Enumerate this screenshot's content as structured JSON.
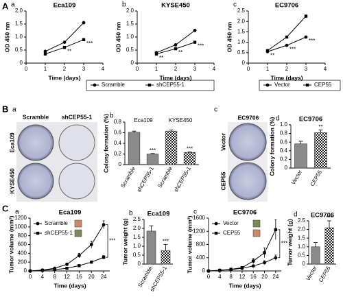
{
  "figure": {
    "panels": [
      "A",
      "B",
      "C"
    ],
    "plates_left": {
      "letter": "a",
      "columns": [
        "Scramble",
        "shCEP55-1"
      ],
      "rows": [
        "Eca109",
        "KYSE450"
      ]
    },
    "plates_right": {
      "letter": "c",
      "title": "EC9706",
      "rows": [
        "Vector",
        "CEP55"
      ]
    }
  },
  "chart_data": [
    {
      "type": "line",
      "letter": "a",
      "title": "Eca109",
      "x_label": "Time (days)",
      "y_label": "OD 450 nm",
      "x": [
        1,
        2,
        3
      ],
      "xlim": [
        0,
        4
      ],
      "xticks": [
        0,
        1,
        2,
        3,
        4
      ],
      "ylim": [
        0,
        2
      ],
      "yticks": [
        0,
        0.5,
        {
          "value": 1,
          "label": "1.0"
        },
        1.5,
        {
          "value": 2,
          "label": "2.0"
        }
      ],
      "legend": "below",
      "series": [
        {
          "name": "Scramble",
          "color": "#000000",
          "marker": "circle",
          "values": [
            0.45,
            0.8,
            1.55
          ],
          "errors": [
            0.03,
            0.04,
            0.05
          ]
        },
        {
          "name": "shCEP55-1",
          "color": "#000000",
          "marker": "square",
          "values": [
            0.35,
            0.6,
            0.9
          ],
          "errors": [
            0.03,
            0.03,
            0.04
          ]
        }
      ],
      "significance": [
        null,
        "**",
        "***"
      ]
    },
    {
      "type": "line",
      "letter": "b",
      "title": "KYSE450",
      "x_label": "Time (days)",
      "y_label": "OD 450 nm",
      "x": [
        1,
        2,
        3
      ],
      "xlim": [
        0,
        4
      ],
      "xticks": [
        0,
        1,
        2,
        3,
        4
      ],
      "ylim": [
        0,
        2
      ],
      "yticks": [
        0,
        0.5,
        {
          "value": 1,
          "label": "1.0"
        },
        1.5,
        {
          "value": 2,
          "label": "2.0"
        }
      ],
      "legend": "none",
      "series": [
        {
          "color": "#000000",
          "marker": "circle",
          "values": [
            0.4,
            0.7,
            1.25
          ],
          "errors": [
            0.03,
            0.04,
            0.05
          ]
        },
        {
          "color": "#000000",
          "marker": "square",
          "values": [
            0.35,
            0.55,
            0.8
          ],
          "errors": [
            0.03,
            0.03,
            0.04
          ]
        }
      ],
      "significance": [
        "**",
        "**",
        "***"
      ]
    },
    {
      "type": "line",
      "letter": "c",
      "title": "EC9706",
      "x_label": "Time (days)",
      "y_label": "OD 450 nm",
      "x": [
        1,
        2,
        3
      ],
      "xlim": [
        0,
        4
      ],
      "xticks": [
        0,
        1,
        2,
        3,
        4
      ],
      "ylim": [
        0,
        2.5
      ],
      "yticks": [
        0,
        0.5,
        {
          "value": 1,
          "label": "1.0"
        },
        1.5,
        {
          "value": 2,
          "label": "2.0"
        },
        2.5
      ],
      "legend": "below",
      "series": [
        {
          "name": "Vector",
          "color": "#000000",
          "marker": "circle",
          "values": [
            0.55,
            0.85,
            1.25
          ],
          "errors": [
            0.03,
            0.04,
            0.05
          ]
        },
        {
          "name": "CEP55",
          "color": "#000000",
          "marker": "square",
          "values": [
            0.6,
            1.25,
            2.25
          ],
          "errors": [
            0.04,
            0.05,
            0.06
          ]
        }
      ],
      "significance": [
        "**",
        "***",
        "***"
      ]
    },
    {
      "type": "bar",
      "letter": "b",
      "y_label": "Colony formation (%)",
      "categories": [
        "Scramble",
        "shCEP55-1",
        "Scramble",
        "shCEP55-1"
      ],
      "group_labels": [
        "Eca109",
        "KYSE450"
      ],
      "values": [
        0.61,
        0.2,
        0.63,
        0.23
      ],
      "errors": [
        0.02,
        0.01,
        0.02,
        0.01
      ],
      "colors": [
        "#8a8a8a",
        "#8a8a8a",
        "#8a8a8a",
        "#8a8a8a"
      ],
      "patterns": [
        "solid",
        "solid",
        "checker",
        "checker"
      ],
      "ylim": [
        0,
        0.8
      ],
      "yticks": [
        0,
        0.2,
        0.4,
        0.6,
        0.8
      ],
      "significance": [
        null,
        "***",
        null,
        "***"
      ]
    },
    {
      "type": "bar",
      "letter": "d",
      "title": "EC9706",
      "y_label": "Colony formation (%)",
      "categories": [
        "Vector",
        "CEP55"
      ],
      "values": [
        0.56,
        0.82
      ],
      "errors": [
        0.06,
        0.06
      ],
      "colors": [
        "#8a8a8a",
        "#8a8a8a"
      ],
      "patterns": [
        "solid",
        "checker"
      ],
      "ylim": [
        0,
        1
      ],
      "yticks": [
        0,
        0.2,
        0.4,
        0.6,
        0.8,
        {
          "value": 1,
          "label": "1.0"
        }
      ],
      "significance": [
        null,
        "**"
      ]
    },
    {
      "type": "line",
      "letter": "a",
      "title": "Eca109",
      "x_label": "Time (days)",
      "y_label": "Tumor volume (mm³)",
      "x": [
        0,
        4,
        8,
        12,
        16,
        20,
        24
      ],
      "xlim": [
        0,
        26
      ],
      "xticks": [
        0,
        4,
        8,
        12,
        16,
        20,
        24
      ],
      "ylim": [
        0,
        1200
      ],
      "yticks": [
        0,
        200,
        400,
        600,
        800,
        1000,
        1200
      ],
      "legend": "top-left",
      "series": [
        {
          "name": "Scramble",
          "color": "#000000",
          "marker": "circle",
          "values": [
            0,
            20,
            60,
            150,
            350,
            600,
            1050
          ],
          "errors": [
            0,
            5,
            10,
            30,
            50,
            80,
            90
          ]
        },
        {
          "name": "shCEP55-1",
          "color": "#000000",
          "marker": "square",
          "values": [
            0,
            15,
            30,
            60,
            120,
            200,
            310
          ],
          "errors": [
            0,
            3,
            5,
            10,
            20,
            30,
            40
          ]
        }
      ],
      "significance": [
        null,
        null,
        null,
        null,
        null,
        null,
        "***"
      ]
    },
    {
      "type": "bar",
      "letter": "b",
      "title": "Eca109",
      "y_label": "Tumor weight (g)",
      "categories": [
        "Scramble",
        "shCEP55-1"
      ],
      "values": [
        1.85,
        0.75
      ],
      "errors": [
        0.3,
        0.35
      ],
      "colors": [
        "#8a8a8a",
        "#8a8a8a"
      ],
      "patterns": [
        "solid",
        "checker"
      ],
      "ylim": [
        0,
        2.5
      ],
      "yticks": [
        0,
        0.5,
        {
          "value": 1,
          "label": "1.0"
        },
        1.5,
        {
          "value": 2,
          "label": "2.0"
        },
        2.5
      ],
      "significance": [
        null,
        "***"
      ]
    },
    {
      "type": "line",
      "letter": "c",
      "title": "EC9706",
      "x_label": "Time (days)",
      "y_label": "Tumor volume (mm³)",
      "x": [
        0,
        4,
        8,
        12,
        16,
        20,
        24
      ],
      "xlim": [
        0,
        26
      ],
      "xticks": [
        0,
        4,
        8,
        12,
        16,
        20,
        24
      ],
      "ylim": [
        0,
        1600
      ],
      "yticks": [
        0,
        400,
        800,
        1200,
        1600
      ],
      "legend": "top-left",
      "series": [
        {
          "name": "Vector",
          "color": "#000000",
          "marker": "circle",
          "values": [
            0,
            20,
            40,
            80,
            150,
            250,
            400
          ],
          "errors": [
            0,
            5,
            10,
            20,
            40,
            60,
            80
          ]
        },
        {
          "name": "CEP55",
          "color": "#000000",
          "marker": "square",
          "values": [
            0,
            20,
            50,
            100,
            300,
            550,
            1250
          ],
          "errors": [
            0,
            5,
            10,
            30,
            80,
            150,
            300
          ]
        }
      ],
      "significance": [
        null,
        null,
        null,
        null,
        null,
        null,
        "***"
      ]
    },
    {
      "type": "bar",
      "letter": "d",
      "title": "EC9706",
      "y_label": "Tumor weight (g)",
      "categories": [
        "Vector",
        "CEP55"
      ],
      "values": [
        1.0,
        2.1
      ],
      "errors": [
        0.25,
        0.4
      ],
      "colors": [
        "#8a8a8a",
        "#8a8a8a"
      ],
      "patterns": [
        "solid",
        "checker"
      ],
      "ylim": [
        0,
        2.5
      ],
      "yticks": [
        0,
        0.5,
        {
          "value": 1,
          "label": "1.0"
        },
        1.5,
        {
          "value": 2,
          "label": "2.0"
        },
        2.5
      ],
      "significance": [
        null,
        "***"
      ]
    }
  ]
}
